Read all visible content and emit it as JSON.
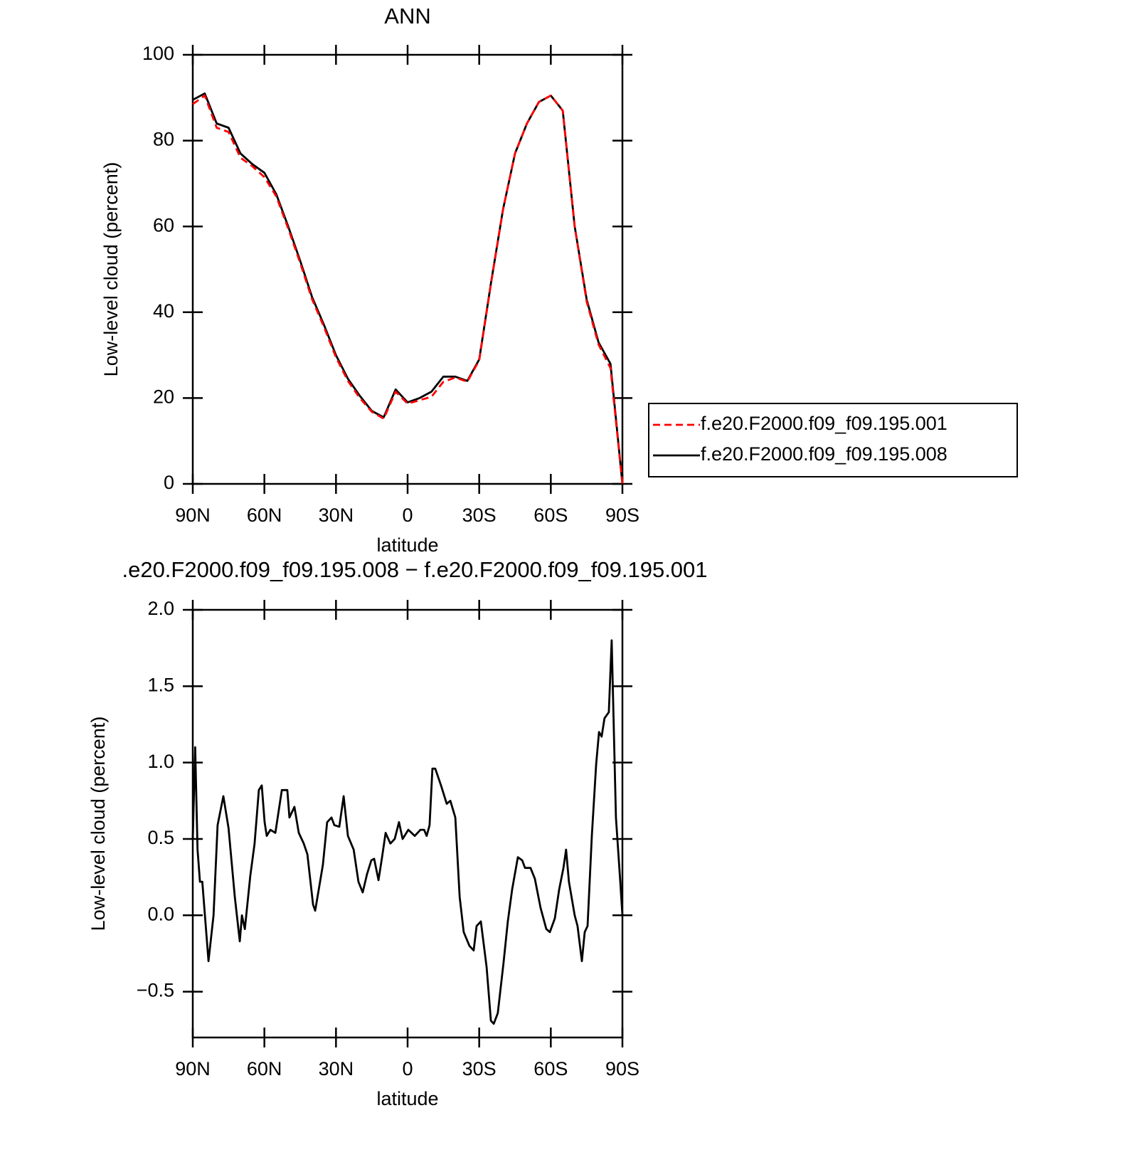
{
  "chart_data": [
    {
      "type": "line",
      "title": "ANN",
      "y_label": "Low-level cloud (percent)",
      "x_label": "latitude",
      "xlim": [
        90,
        -90
      ],
      "ylim": [
        0,
        100
      ],
      "xticks": [
        {
          "value": 90,
          "label": "90N"
        },
        {
          "value": 60,
          "label": "60N"
        },
        {
          "value": 30,
          "label": "30N"
        },
        0,
        {
          "value": -30,
          "label": "30S"
        },
        {
          "value": -60,
          "label": "60S"
        },
        {
          "value": -90,
          "label": "90S"
        }
      ],
      "yticks": [
        0,
        20,
        40,
        60,
        80,
        100
      ],
      "legend": "right",
      "x": [
        90,
        85,
        80,
        75,
        70,
        65,
        60,
        55,
        50,
        45,
        40,
        35,
        30,
        25,
        20,
        15,
        10,
        5,
        0,
        -5,
        -10,
        -15,
        -20,
        -25,
        -30,
        -35,
        -40,
        -45,
        -50,
        -55,
        -60,
        -65,
        -70,
        -75,
        -80,
        -85,
        -90
      ],
      "series": [
        {
          "name": "f.e20.F2000.f09_f09.195.001",
          "color": "#ff0000",
          "dash": true,
          "values": [
            88.5,
            90.5,
            83,
            82,
            76,
            74,
            71.5,
            67,
            59.5,
            51.5,
            43,
            36.5,
            29.5,
            24,
            20,
            16.8,
            15.2,
            21.5,
            18.7,
            19.5,
            20.3,
            23.8,
            24.8,
            23.8,
            28.8,
            46.8,
            64,
            77,
            84,
            89,
            90.5,
            87,
            60,
            42.5,
            32.5,
            27,
            0
          ]
        },
        {
          "name": "f.e20.F2000.f09_f09.195.008",
          "color": "#000000",
          "dash": false,
          "values": [
            89.5,
            91,
            84,
            83,
            77,
            74.5,
            72.5,
            67.5,
            60,
            52,
            43.5,
            37,
            30,
            24.5,
            20.5,
            17,
            15.5,
            22,
            19,
            20,
            21.5,
            25,
            25,
            24,
            29,
            47,
            64,
            77,
            84,
            89,
            90.5,
            87,
            60,
            43,
            33,
            28,
            0
          ]
        }
      ]
    },
    {
      "type": "line",
      "title": ".e20.F2000.f09_f09.195.008 − f.e20.F2000.f09_f09.195.001",
      "y_label": "Low-level cloud (percent)",
      "x_label": "latitude",
      "xlim": [
        90,
        -90
      ],
      "ylim": [
        -0.8,
        2.0
      ],
      "xticks": [
        {
          "value": 90,
          "label": "90N"
        },
        {
          "value": 60,
          "label": "60N"
        },
        {
          "value": 30,
          "label": "30N"
        },
        0,
        {
          "value": -30,
          "label": "30S"
        },
        {
          "value": -60,
          "label": "60S"
        },
        {
          "value": -90,
          "label": "90S"
        }
      ],
      "yticks": [
        {
          "value": -0.5,
          "label": "−0.5"
        },
        {
          "value": 0,
          "label": "0.0"
        },
        0.5,
        {
          "value": 1,
          "label": "1.0"
        },
        1.5,
        {
          "value": 2,
          "label": "2.0"
        }
      ],
      "x": [
        90,
        89,
        88,
        87,
        86,
        83.4,
        81.3,
        79.6,
        77.2,
        75,
        72.4,
        70.3,
        69.4,
        68.2,
        65.9,
        64.1,
        62.3,
        61.1,
        59.9,
        59,
        57.5,
        55.4,
        52.7,
        50.4,
        49.5,
        47.4,
        45.6,
        43.5,
        42,
        39.6,
        38.7,
        35.5,
        33.7,
        31.9,
        30.7,
        28.6,
        26.8,
        25,
        22.6,
        20.6,
        18.8,
        17,
        15.2,
        14,
        12.2,
        10.7,
        9.2,
        7.2,
        5.4,
        3.6,
        2.1,
        -0.3,
        -3,
        -5.4,
        -6.9,
        -8,
        -9.2,
        -10.4,
        -11.6,
        -14,
        -16.4,
        -17.9,
        -20,
        -21.8,
        -23.5,
        -25.9,
        -27.7,
        -28.9,
        -30.7,
        -33.1,
        -34.9,
        -36.1,
        -37.8,
        -40.2,
        -42,
        -43.8,
        -46.2,
        -48,
        -49.2,
        -51.5,
        -53.3,
        -55.7,
        -58.1,
        -59.6,
        -61.7,
        -63.5,
        -65.3,
        -66.4,
        -67.6,
        -70,
        -71.2,
        -73,
        -74.2,
        -75.4,
        -77.2,
        -79,
        -80.2,
        -81.3,
        -82.5,
        -84.3,
        -85.5,
        -87.3,
        -89.1,
        -90
      ],
      "series": [
        {
          "color": "#000000",
          "values": [
            0.5,
            1.1,
            0.43,
            0.22,
            0.22,
            -0.3,
            0,
            0.59,
            0.78,
            0.57,
            0.12,
            -0.17,
            0,
            -0.09,
            0.26,
            0.47,
            0.82,
            0.85,
            0.61,
            0.52,
            0.56,
            0.54,
            0.82,
            0.82,
            0.64,
            0.71,
            0.54,
            0.47,
            0.4,
            0.07,
            0.03,
            0.33,
            0.61,
            0.64,
            0.59,
            0.58,
            0.78,
            0.52,
            0.43,
            0.22,
            0.15,
            0.27,
            0.36,
            0.37,
            0.23,
            0.38,
            0.54,
            0.47,
            0.5,
            0.61,
            0.5,
            0.56,
            0.52,
            0.56,
            0.56,
            0.52,
            0.59,
            0.96,
            0.96,
            0.85,
            0.73,
            0.75,
            0.64,
            0.12,
            -0.11,
            -0.2,
            -0.23,
            -0.07,
            -0.04,
            -0.34,
            -0.69,
            -0.71,
            -0.64,
            -0.31,
            -0.04,
            0.17,
            0.38,
            0.36,
            0.31,
            0.31,
            0.24,
            0.05,
            -0.09,
            -0.11,
            -0.02,
            0.17,
            0.31,
            0.43,
            0.22,
            0,
            -0.07,
            -0.3,
            -0.11,
            -0.07,
            0.52,
            0.99,
            1.2,
            1.17,
            1.29,
            1.33,
            1.8,
            0.64,
            0.22,
            0
          ]
        }
      ]
    }
  ]
}
